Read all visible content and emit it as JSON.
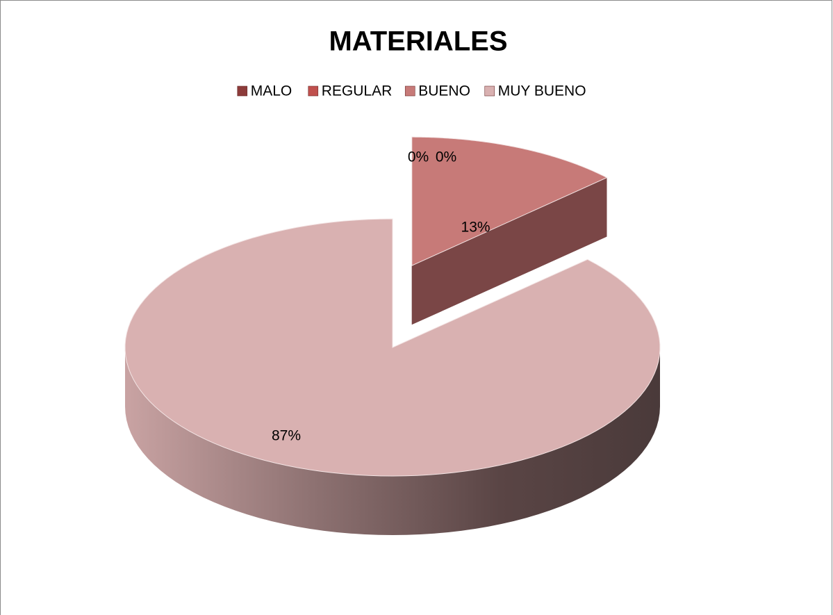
{
  "chart_data": {
    "type": "pie",
    "title": "MATERIALES",
    "categories": [
      "MALO",
      "REGULAR",
      "BUENO",
      "MUY BUENO"
    ],
    "values": [
      0,
      0,
      13,
      87
    ],
    "value_labels": [
      "0%",
      "0%",
      "13%",
      "87%"
    ],
    "colors": [
      "#8c3b3a",
      "#c0504d",
      "#c77a78",
      "#d9b1b1"
    ],
    "exploded": "BUENO",
    "legend": "top"
  }
}
